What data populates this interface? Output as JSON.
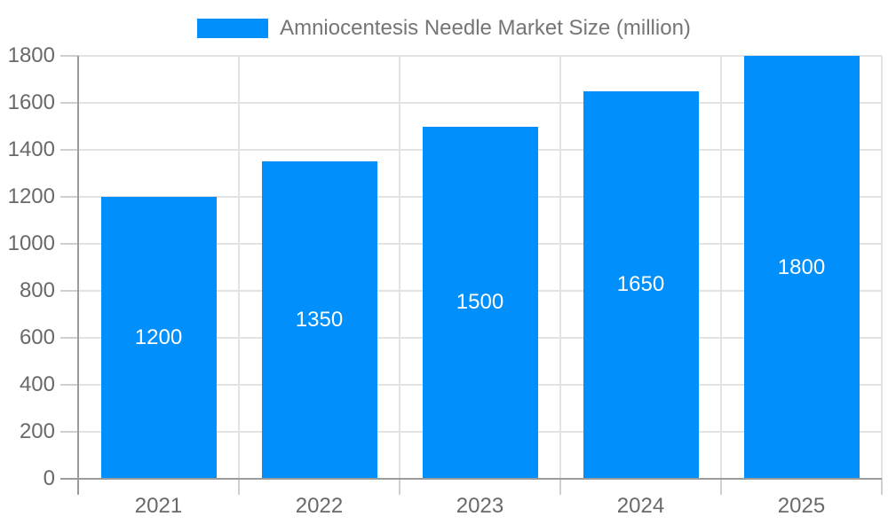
{
  "chart_data": {
    "type": "bar",
    "title": "",
    "legend": {
      "position": "top",
      "label": "Amniocentesis Needle Market Size (million)"
    },
    "categories": [
      "2021",
      "2022",
      "2023",
      "2024",
      "2025"
    ],
    "series": [
      {
        "name": "Amniocentesis Needle Market Size (million)",
        "values": [
          1200,
          1350,
          1500,
          1650,
          1800
        ]
      }
    ],
    "value_labels_shown_on_bars": [
      "1200",
      "1350",
      "1500",
      "1650",
      "1800"
    ],
    "xlabel": "",
    "ylabel": "",
    "ylim": [
      0,
      1800
    ],
    "ytick_step": 200,
    "yticks": [
      0,
      200,
      400,
      600,
      800,
      1000,
      1200,
      1400,
      1600,
      1800
    ],
    "grid": true,
    "colors": {
      "bar": "#008ffb",
      "bar_value_text": "#ffffff",
      "grid": "#e3e3e3",
      "axis": "#9b9b9b",
      "tick": "#cfcfcf",
      "axis_text": "#696969",
      "legend_text": "#757575",
      "background": "#ffffff"
    }
  }
}
